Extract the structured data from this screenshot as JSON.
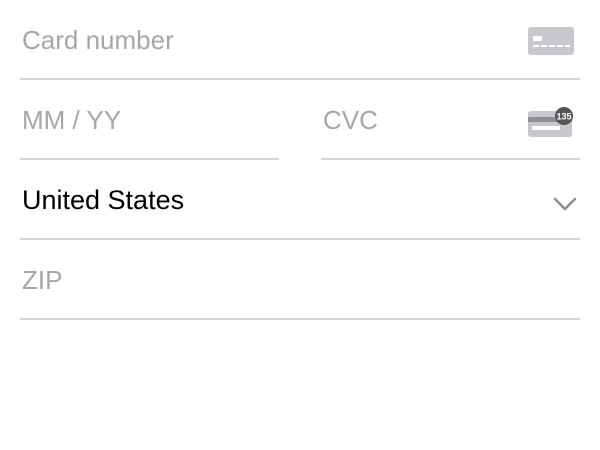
{
  "card_number": {
    "placeholder": "Card number",
    "value": ""
  },
  "expiry": {
    "placeholder": "MM / YY",
    "value": ""
  },
  "cvc": {
    "placeholder": "CVC",
    "value": "",
    "icon_badge": "135"
  },
  "country": {
    "selected": "United States"
  },
  "zip": {
    "placeholder": "ZIP",
    "value": ""
  },
  "colors": {
    "placeholder": "#a6a6aa",
    "divider": "#d4d4d6",
    "icon": "#c7c7cc",
    "badge": "#555555",
    "text": "#000000"
  }
}
